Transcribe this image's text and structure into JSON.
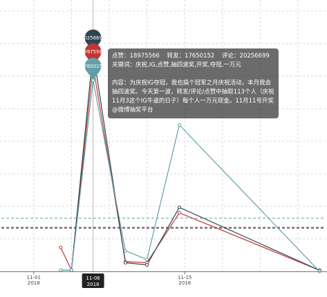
{
  "chart_data": {
    "type": "line",
    "x": [
      "2018-11-03",
      "2018-11-04",
      "2018-11-06",
      "2018-11-09",
      "2018-11-11",
      "2018-11-14",
      "2018-11-27"
    ],
    "series": [
      {
        "name": "点赞",
        "color": "#c23531",
        "values": [
          2200000,
          100000,
          18975566,
          900000,
          800000,
          5400000,
          100000
        ]
      },
      {
        "name": "评论",
        "color": "#2f4554",
        "values": [
          100000,
          100000,
          20256699,
          800000,
          600000,
          5900000,
          100000
        ]
      },
      {
        "name": "转发",
        "color": "#61a0a8",
        "values": [
          100000,
          100000,
          17650152,
          1900000,
          1100000,
          13500000,
          0
        ]
      }
    ],
    "xlim": [
      "2018-10-29",
      "2018-11-28"
    ],
    "ylim": [
      0,
      24000000
    ],
    "x_ticks": [
      {
        "date": "11-01",
        "year": "2018"
      },
      {
        "date": "11-15",
        "year": "2018"
      }
    ],
    "axis_pointer": {
      "date": "11-06",
      "year": "2018"
    },
    "max_markers": true,
    "average_lines": true,
    "grid": true
  },
  "tooltip": {
    "separator": "：",
    "keywords_label": "关键词：",
    "keywords": "庆祝,IG,点赞,抽四波奖,开奖,夺冠,一万元",
    "content_label": "内容：",
    "content": "为庆祝IG夺冠，我也搞个冠军之月庆祝活动，本月我会抽四波奖。今天第一波，转发/评论/点赞中抽取113个人（庆祝11月3这个IG牛逼的日子）每个人一万元现金。11月11号开奖@微博抽奖平台"
  }
}
